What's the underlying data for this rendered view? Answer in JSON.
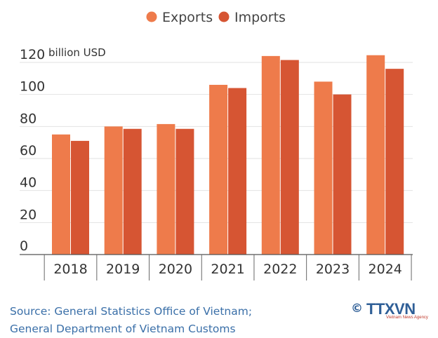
{
  "chart_data": {
    "type": "bar",
    "categories": [
      "2018",
      "2019",
      "2020",
      "2021",
      "2022",
      "2023",
      "2024"
    ],
    "series": [
      {
        "name": "Exports",
        "values": [
          75,
          80,
          81.5,
          106,
          124,
          108,
          124.5
        ],
        "color": "#ee7b4b"
      },
      {
        "name": "Imports",
        "values": [
          71,
          78.5,
          78.5,
          104,
          121.5,
          100,
          116
        ],
        "color": "#d65533"
      }
    ],
    "ylim": [
      0,
      120
    ],
    "yticks": [
      0,
      20,
      40,
      60,
      80,
      100,
      120
    ],
    "ylabel": "billion USD",
    "legend_position": "top",
    "grid": true
  },
  "source": {
    "line1": "Source: General Statistics Office of Vietnam;",
    "line2": "General Department of Vietnam Customs"
  },
  "logo": {
    "copyright": "©",
    "name": "TTXVN",
    "subtitle": "Vietnam News Agency"
  }
}
